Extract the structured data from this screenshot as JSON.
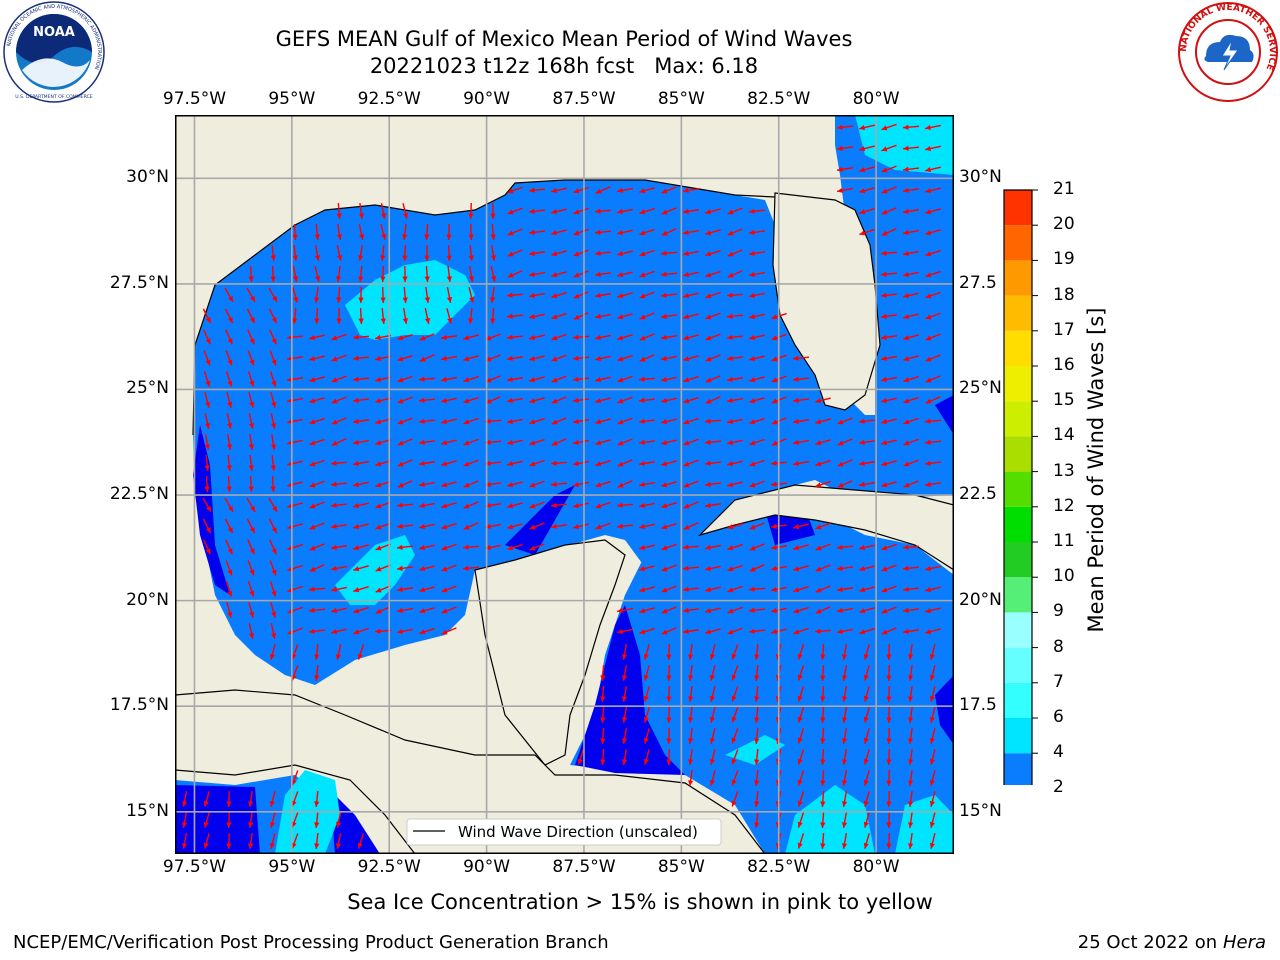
{
  "title": {
    "line1": "GEFS MEAN Gulf of Mexico Mean Period of Wind Waves",
    "line2": "20221023 t12z 168h fcst   Max: 6.18"
  },
  "logos": {
    "left": {
      "name": "NOAA",
      "ring_text": "NATIONAL OCEANIC AND ATMOSPHERIC ADMINISTRATION",
      "bottom_text": "U.S. DEPARTMENT OF COMMERCE"
    },
    "right": {
      "ring_text": "NATIONAL WEATHER SERVICE"
    }
  },
  "map": {
    "lon_ticks": [
      "97.5°W",
      "95°W",
      "92.5°W",
      "90°W",
      "87.5°W",
      "85°W",
      "82.5°W",
      "80°W"
    ],
    "lat_ticks_left": [
      "30°N",
      "27.5°N",
      "25°N",
      "22.5°N",
      "20°N",
      "17.5°N",
      "15°N"
    ],
    "lat_ticks_right": [
      "30°N",
      "27.5",
      "25°N",
      "22.5",
      "20°N",
      "17.5",
      "15°N"
    ],
    "lon_range": [
      -98,
      -78
    ],
    "lat_range": [
      14,
      31.5
    ],
    "land_color": "#efedde",
    "legend_label": "Wind Wave Direction (unscaled)",
    "arrow_color": "#ff0000"
  },
  "colorbar": {
    "label": "Mean Period of Wind Waves [s]",
    "tick_labels": [
      "2",
      "4",
      "6",
      "7",
      "8",
      "9",
      "10",
      "11",
      "12",
      "13",
      "14",
      "15",
      "16",
      "17",
      "18",
      "19",
      "20",
      "21"
    ],
    "colors": [
      "#0a7dff",
      "#00e5ff",
      "#33ffff",
      "#66ffff",
      "#99ffff",
      "#55ee77",
      "#22cc22",
      "#00dd00",
      "#55dd00",
      "#aadd00",
      "#ccee00",
      "#eeee00",
      "#ffdd00",
      "#ffbb00",
      "#ff9900",
      "#ff6600",
      "#ff3300",
      "#ff0000"
    ],
    "extend_color": "#0000ee"
  },
  "footer": {
    "ice_note": "Sea Ice Concentration > 15% is shown in pink to yellow",
    "left": "NCEP/EMC/Verification Post Processing Product Generation Branch",
    "right_prefix": "25 Oct 2022 on ",
    "right_host": "Hera"
  }
}
